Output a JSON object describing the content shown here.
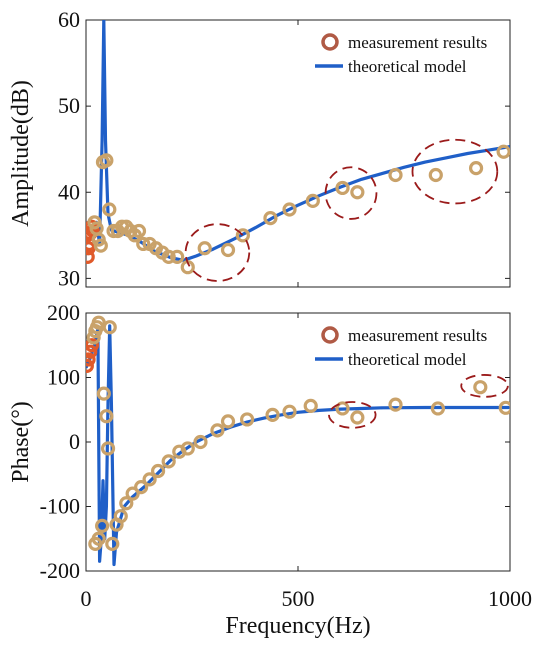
{
  "colors": {
    "measurement_edge": "#b05a45",
    "measurement_face": "#c9a26a",
    "low_freq_marker_edge": "#e05a2a",
    "model_line": "#1f5fc8",
    "highlight_ellipse": "#9b1b1b",
    "axis": "#222222"
  },
  "chart_data": [
    {
      "type": "line",
      "name_role": "amplitude-panel",
      "ylabel": "Amplitude(dB)",
      "xlabel": "",
      "xlim": [
        0,
        1000
      ],
      "ylim": [
        29,
        60
      ],
      "yticks": [
        30,
        40,
        50,
        60
      ],
      "xticks": [
        0,
        500,
        1000
      ],
      "show_xtick_labels": false,
      "legend": {
        "position": "top-right",
        "entries": [
          "measurement results",
          "theoretical model"
        ]
      },
      "series": [
        {
          "name": "measurement results",
          "kind": "scatter",
          "points": [
            [
              2,
              35.0
            ],
            [
              4,
              32.5
            ],
            [
              6,
              33.5
            ],
            [
              8,
              34.0
            ],
            [
              10,
              35.2
            ],
            [
              13,
              36.0
            ],
            [
              16,
              35.5
            ],
            [
              20,
              36.5
            ],
            [
              25,
              35.8
            ],
            [
              30,
              34.5
            ],
            [
              35,
              33.8
            ],
            [
              40,
              43.5
            ],
            [
              48,
              43.7
            ],
            [
              55,
              38.0
            ],
            [
              65,
              35.5
            ],
            [
              75,
              35.5
            ],
            [
              85,
              36.0
            ],
            [
              95,
              36.0
            ],
            [
              105,
              35.5
            ],
            [
              115,
              35.0
            ],
            [
              125,
              35.5
            ],
            [
              135,
              34.0
            ],
            [
              150,
              34.0
            ],
            [
              165,
              33.5
            ],
            [
              180,
              33.0
            ],
            [
              195,
              32.5
            ],
            [
              215,
              32.5
            ],
            [
              240,
              31.3
            ],
            [
              280,
              33.5
            ],
            [
              335,
              33.3
            ],
            [
              370,
              35.0
            ],
            [
              435,
              37.0
            ],
            [
              480,
              38.0
            ],
            [
              535,
              39.0
            ],
            [
              605,
              40.5
            ],
            [
              640,
              40.0
            ],
            [
              730,
              42.0
            ],
            [
              825,
              42.0
            ],
            [
              920,
              42.8
            ],
            [
              985,
              44.7
            ]
          ]
        },
        {
          "name": "theoretical model",
          "kind": "line",
          "points": [
            [
              0,
              34.0
            ],
            [
              15,
              35.0
            ],
            [
              25,
              36.5
            ],
            [
              32,
              34.0
            ],
            [
              38,
              46.0
            ],
            [
              42,
              60.0
            ],
            [
              46,
              46.0
            ],
            [
              52,
              37.5
            ],
            [
              60,
              35.6
            ],
            [
              80,
              35.3
            ],
            [
              100,
              35.0
            ],
            [
              130,
              34.2
            ],
            [
              160,
              33.2
            ],
            [
              200,
              32.4
            ],
            [
              230,
              32.1
            ],
            [
              260,
              32.6
            ],
            [
              300,
              33.4
            ],
            [
              350,
              34.6
            ],
            [
              400,
              35.9
            ],
            [
              450,
              37.3
            ],
            [
              500,
              38.5
            ],
            [
              550,
              39.6
            ],
            [
              600,
              40.6
            ],
            [
              650,
              41.5
            ],
            [
              700,
              42.2
            ],
            [
              750,
              42.9
            ],
            [
              800,
              43.5
            ],
            [
              850,
              44.0
            ],
            [
              900,
              44.5
            ],
            [
              950,
              44.9
            ],
            [
              1000,
              45.3
            ]
          ]
        }
      ],
      "highlight_ellipses": [
        {
          "cx": 310,
          "cy": 33.0,
          "rx": 75,
          "ry": 3.3
        },
        {
          "cx": 625,
          "cy": 39.9,
          "rx": 60,
          "ry": 3.0
        },
        {
          "cx": 870,
          "cy": 42.4,
          "rx": 100,
          "ry": 3.7
        }
      ]
    },
    {
      "type": "line",
      "name_role": "phase-panel",
      "ylabel": "Phase(°)",
      "xlabel": "Frequency(Hz)",
      "xlim": [
        0,
        1000
      ],
      "ylim": [
        -200,
        200
      ],
      "yticks": [
        -200,
        -100,
        0,
        100,
        200
      ],
      "xticks": [
        0,
        500,
        1000
      ],
      "show_xtick_labels": true,
      "legend": {
        "position": "top-right",
        "entries": [
          "measurement results",
          "theoretical model"
        ]
      },
      "series": [
        {
          "name": "measurement results",
          "kind": "scatter",
          "points": [
            [
              2,
              118
            ],
            [
              6,
              128
            ],
            [
              10,
              140
            ],
            [
              14,
              150
            ],
            [
              18,
              162
            ],
            [
              22,
              172
            ],
            [
              26,
              178
            ],
            [
              30,
              185
            ],
            [
              22,
              -158
            ],
            [
              30,
              -150
            ],
            [
              38,
              -130
            ],
            [
              42,
              75
            ],
            [
              48,
              40
            ],
            [
              52,
              -10
            ],
            [
              56,
              178
            ],
            [
              62,
              -158
            ],
            [
              72,
              -128
            ],
            [
              82,
              -115
            ],
            [
              95,
              -95
            ],
            [
              110,
              -80
            ],
            [
              130,
              -70
            ],
            [
              150,
              -58
            ],
            [
              170,
              -45
            ],
            [
              195,
              -30
            ],
            [
              220,
              -15
            ],
            [
              240,
              -10
            ],
            [
              270,
              0
            ],
            [
              310,
              18
            ],
            [
              335,
              32
            ],
            [
              380,
              35
            ],
            [
              440,
              42
            ],
            [
              480,
              47
            ],
            [
              530,
              56
            ],
            [
              605,
              52
            ],
            [
              640,
              38
            ],
            [
              730,
              58
            ],
            [
              830,
              52
            ],
            [
              930,
              85
            ],
            [
              990,
              53
            ]
          ]
        },
        {
          "name": "theoretical model",
          "kind": "line",
          "points": [
            [
              0,
              115
            ],
            [
              10,
              130
            ],
            [
              20,
              150
            ],
            [
              28,
              175
            ],
            [
              32,
              -185
            ],
            [
              36,
              -150
            ],
            [
              40,
              -60
            ],
            [
              44,
              -150
            ],
            [
              48,
              -100
            ],
            [
              52,
              60
            ],
            [
              56,
              180
            ],
            [
              60,
              60
            ],
            [
              66,
              -190
            ],
            [
              72,
              -140
            ],
            [
              90,
              -100
            ],
            [
              110,
              -85
            ],
            [
              140,
              -68
            ],
            [
              170,
              -48
            ],
            [
              200,
              -28
            ],
            [
              230,
              -13
            ],
            [
              260,
              0
            ],
            [
              300,
              13
            ],
            [
              340,
              23
            ],
            [
              380,
              31
            ],
            [
              420,
              37
            ],
            [
              460,
              42
            ],
            [
              500,
              46
            ],
            [
              550,
              49
            ],
            [
              600,
              51
            ],
            [
              650,
              52
            ],
            [
              700,
              53
            ],
            [
              800,
              53.5
            ],
            [
              900,
              53.5
            ],
            [
              1000,
              53.5
            ]
          ]
        }
      ],
      "highlight_ellipses": [
        {
          "cx": 628,
          "cy": 42,
          "rx": 55,
          "ry": 20
        },
        {
          "cx": 940,
          "cy": 87,
          "rx": 55,
          "ry": 17
        }
      ]
    }
  ]
}
